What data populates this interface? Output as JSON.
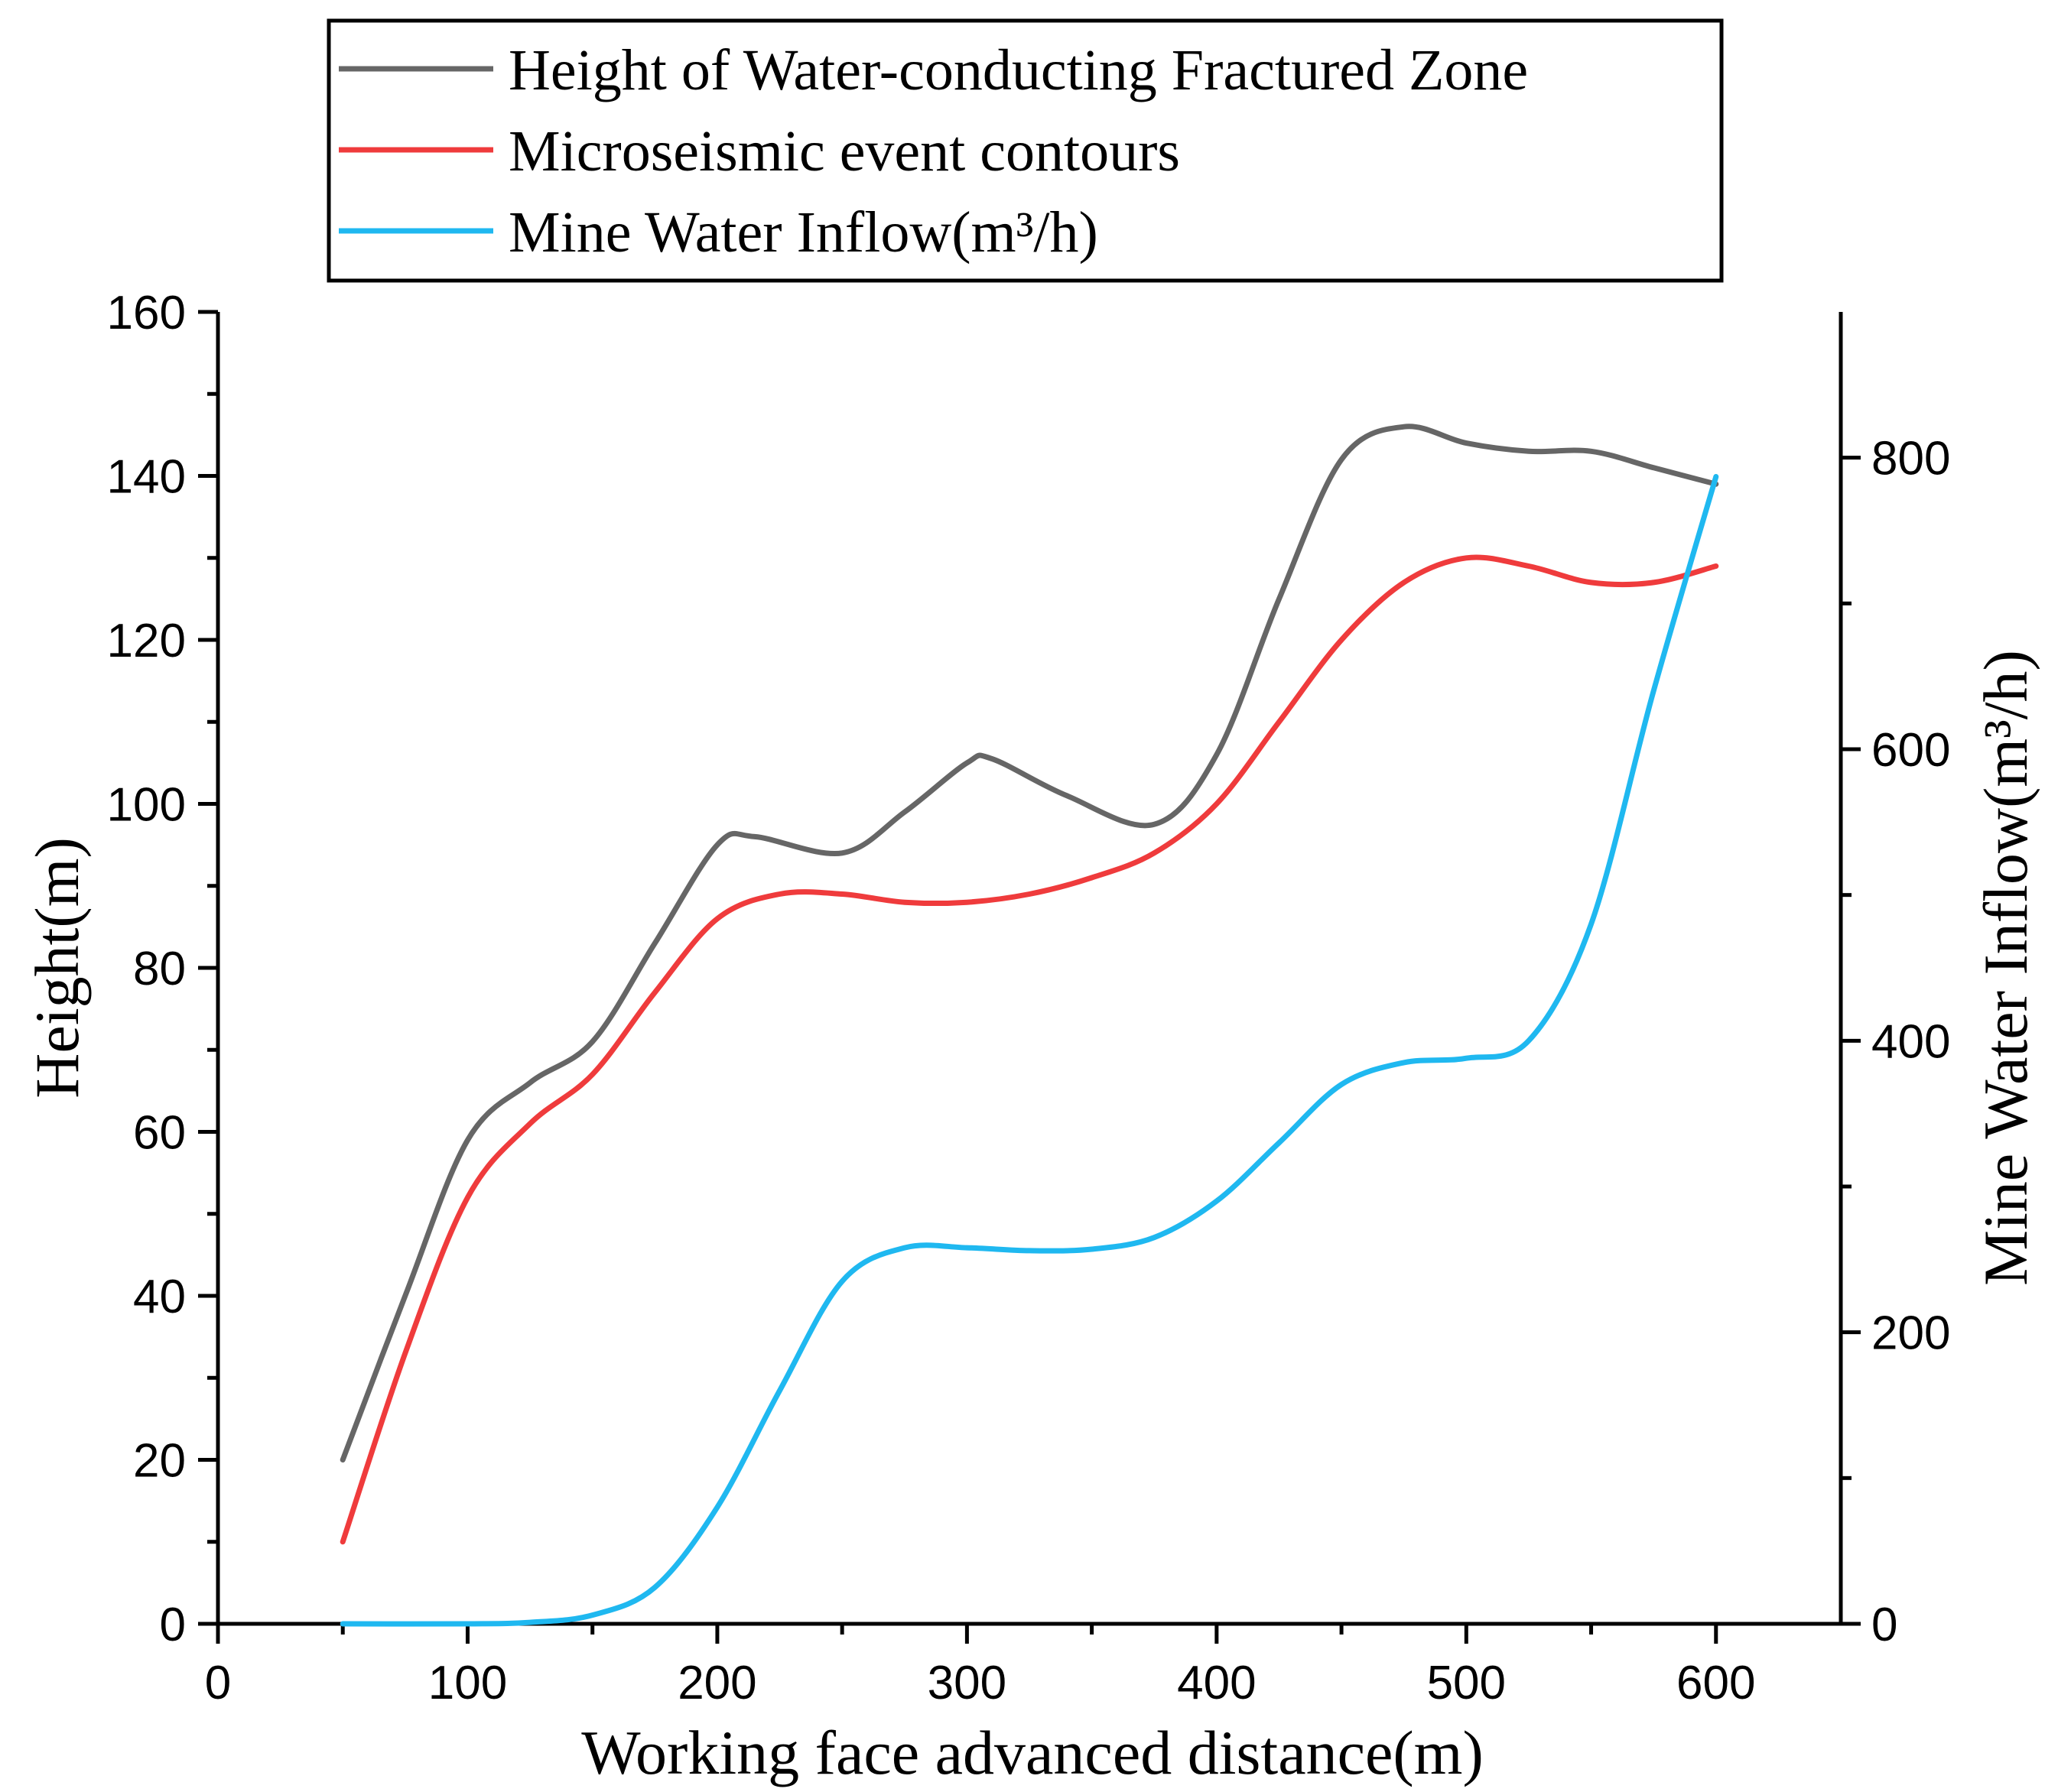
{
  "chart_data": {
    "type": "line",
    "title": "",
    "xlabel": "Working face advanced distance(m)",
    "ylabel": "Height(m)",
    "y2label": "Mine Water Inflow(m³/h)",
    "xlim": [
      0,
      650
    ],
    "ylim": [
      0,
      160
    ],
    "y2lim": [
      0,
      900
    ],
    "x_ticks": [
      0,
      100,
      200,
      300,
      400,
      500,
      600
    ],
    "x_tick_labels": [
      "0",
      "100",
      "200",
      "300",
      "400",
      "500",
      "600"
    ],
    "y_ticks": [
      0,
      20,
      40,
      60,
      80,
      100,
      120,
      140,
      160
    ],
    "y_tick_labels": [
      "0",
      "20",
      "40",
      "60",
      "80",
      "100",
      "120",
      "140",
      "160"
    ],
    "y2_ticks": [
      0,
      200,
      400,
      600,
      800
    ],
    "y2_tick_labels": [
      "0",
      "200",
      "400",
      "600",
      "800"
    ],
    "legend_position": "top",
    "series": [
      {
        "name": "Height of Water-conducting Fractured Zone",
        "axis": "left",
        "color": "#666666",
        "x": [
          50,
          75,
          100,
          125,
          150,
          175,
          200,
          215,
          250,
          275,
          300,
          310,
          340,
          375,
          400,
          425,
          450,
          475,
          500,
          525,
          550,
          575,
          600
        ],
        "y": [
          20,
          40,
          59,
          66,
          71,
          83,
          95,
          96,
          94,
          99,
          105,
          105.5,
          101,
          97.5,
          106,
          125,
          142,
          146,
          144,
          143,
          143,
          141,
          139
        ]
      },
      {
        "name": "Microseismic event contours",
        "axis": "left",
        "color": "#ef3b3c",
        "x": [
          50,
          75,
          100,
          125,
          150,
          175,
          200,
          225,
          250,
          275,
          300,
          325,
          350,
          375,
          400,
          425,
          450,
          475,
          500,
          525,
          550,
          575,
          600
        ],
        "y": [
          10,
          33,
          52,
          61,
          67,
          77,
          86,
          89,
          89,
          88,
          88,
          89,
          91,
          94,
          100,
          110,
          120,
          127,
          130,
          129,
          127,
          127,
          129
        ]
      },
      {
        "name": "Mine Water Inflow(m³/h)",
        "axis": "right",
        "color": "#1fb8f0",
        "x": [
          50,
          100,
          125,
          150,
          175,
          200,
          225,
          250,
          275,
          300,
          325,
          350,
          375,
          400,
          425,
          450,
          475,
          500,
          525,
          550,
          575,
          600
        ],
        "y": [
          0,
          0,
          1,
          6,
          25,
          80,
          160,
          235,
          258,
          258,
          256,
          257,
          265,
          290,
          330,
          370,
          385,
          388,
          400,
          480,
          640,
          787
        ]
      }
    ]
  }
}
